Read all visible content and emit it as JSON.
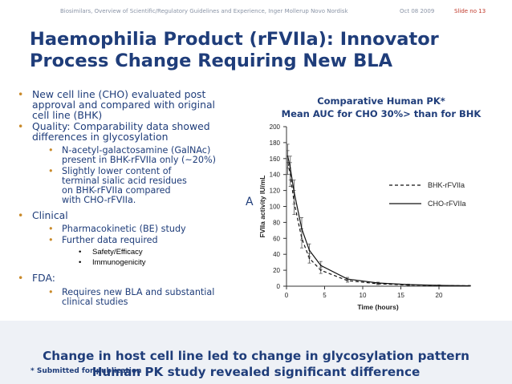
{
  "header": {
    "presenter": "Biosimilars, Overview of Scientific/Regulatory Guidelines and Experience, Inger Mollerup Novo Nordisk",
    "date": "Oct 08 2009",
    "slide": "Slide no 13"
  },
  "title": {
    "line1": "Haemophilia Product (rFVIIa): Innovator",
    "line2": "Process Change Requiring New BLA"
  },
  "bullets": {
    "b1_l1": "New cell line (CHO) evaluated post",
    "b1_l2": "approval and compared with original",
    "b1_l3": "cell line (BHK)",
    "b2_l1": "Quality: Comparability data showed",
    "b2_l2": "differences in glycosylation",
    "b2a_l1": "N-acetyl-galactosamine (GalNAc)",
    "b2a_l2": "present in BHK-rFVIIa only (~20%)",
    "b2b_l1": "Slightly lower content of",
    "b2b_l2": "terminal sialic acid residues",
    "b2b_l3": "on BHK-rFVIIa compared",
    "b2b_l4": "with CHO-rFVIIa.",
    "b3": "Clinical",
    "b3a": "Pharmacokinetic (BE) study",
    "b3b": "Further data required",
    "b3b_i": "Safety/Efficacy",
    "b3b_ii": "Immunogenicity",
    "b4": "FDA:",
    "b4a_l1": "Requires new BLA and substantial",
    "b4a_l2": "clinical studies"
  },
  "annotation": "A",
  "chart_title": {
    "line1": "Comparative Human PK*",
    "line2": "Mean AUC for CHO 30%> than for BHK"
  },
  "conclusion": {
    "line1": "Change in host cell line led to change in glycosylation pattern",
    "line2": "Human PK study revealed significant difference"
  },
  "footnote": "* Submitted for publication",
  "colors": {
    "title": "#1f3d7a",
    "bullet": "#c98a2a",
    "axis": "#333333"
  },
  "chart_data": {
    "type": "line",
    "xlabel": "Time (hours)",
    "ylabel": "FVIIa activity IU/mL",
    "xlim": [
      0,
      24
    ],
    "ylim": [
      0,
      200
    ],
    "xticks": [
      0,
      5,
      10,
      15,
      20
    ],
    "yticks": [
      0,
      20,
      40,
      60,
      80,
      100,
      120,
      140,
      160,
      180,
      200
    ],
    "series": [
      {
        "name": "BHK-rFVIIa",
        "style": "dashed",
        "x": [
          0.17,
          0.5,
          1,
          2,
          3,
          4.5,
          8,
          12,
          16,
          20,
          24
        ],
        "y": [
          155,
          140,
          105,
          60,
          35,
          20,
          7,
          3,
          1.5,
          1,
          0.5
        ],
        "err": [
          15,
          15,
          15,
          12,
          6,
          4,
          2,
          1,
          0.5,
          0.5,
          0.3
        ]
      },
      {
        "name": "CHO-rFVIIa",
        "style": "solid",
        "x": [
          0.17,
          0.5,
          1,
          2,
          3,
          4.5,
          8,
          12,
          16,
          20,
          24
        ],
        "y": [
          163,
          148,
          118,
          72,
          45,
          26,
          9,
          4,
          2,
          1,
          0.5
        ],
        "err": [
          15,
          15,
          15,
          14,
          8,
          5,
          2,
          1,
          0.5,
          0.5,
          0.3
        ]
      }
    ]
  }
}
